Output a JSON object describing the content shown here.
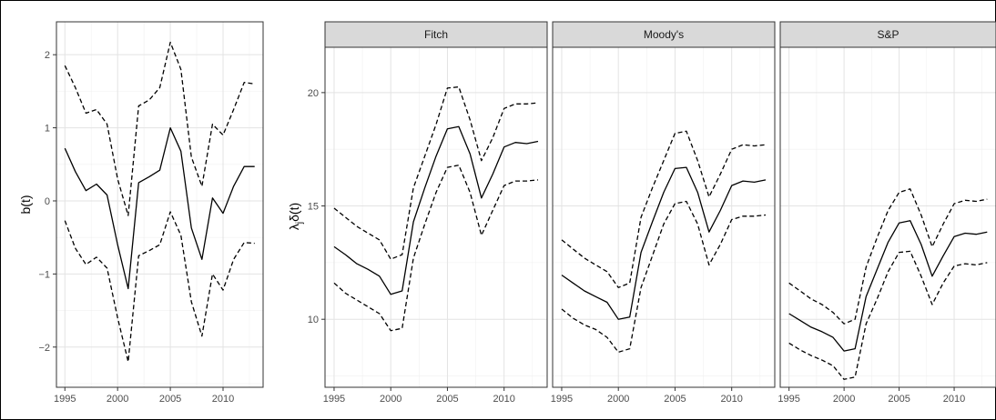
{
  "chart_data": [
    {
      "type": "line",
      "ylabel": "b(t)",
      "xlabel": "",
      "x": [
        1995,
        1996,
        1997,
        1998,
        1999,
        2000,
        2001,
        2002,
        2003,
        2004,
        2005,
        2006,
        2007,
        2008,
        2009,
        2010,
        2011,
        2012,
        2013
      ],
      "xticks": [
        1995,
        2000,
        2005,
        2010
      ],
      "xlim": [
        1994.2,
        2013.8
      ],
      "ylim": [
        -2.55,
        2.45
      ],
      "yticks": [
        -2,
        -1,
        0,
        1,
        2
      ],
      "ytick_labels": [
        "−2",
        "−1",
        "0",
        "1",
        "2"
      ],
      "grid": true,
      "series": [
        {
          "style": "dashed",
          "values": [
            1.85,
            1.55,
            1.2,
            1.25,
            1.05,
            0.3,
            -0.2,
            1.3,
            1.38,
            1.55,
            2.17,
            1.8,
            0.6,
            0.2,
            1.05,
            0.9,
            1.25,
            1.62,
            1.6
          ]
        },
        {
          "style": "solid",
          "values": [
            0.72,
            0.4,
            0.14,
            0.23,
            0.08,
            -0.6,
            -1.2,
            0.25,
            0.33,
            0.42,
            1.0,
            0.68,
            -0.37,
            -0.8,
            0.04,
            -0.17,
            0.2,
            0.47,
            0.47
          ]
        },
        {
          "style": "dashed",
          "values": [
            -0.27,
            -0.65,
            -0.87,
            -0.77,
            -0.92,
            -1.6,
            -2.2,
            -0.75,
            -0.68,
            -0.6,
            -0.15,
            -0.47,
            -1.38,
            -1.85,
            -1.0,
            -1.22,
            -0.8,
            -0.57,
            -0.58
          ]
        }
      ]
    },
    {
      "type": "line",
      "ylabel": "λjδ(t)",
      "ylabel_main": "λ",
      "ylabel_sub": "j",
      "ylabel_rest": "δ(t)",
      "xlabel": "",
      "xlim": [
        1994.2,
        2013.8
      ],
      "ylim": [
        7.0,
        22.0
      ],
      "xticks": [
        1995,
        2000,
        2005,
        2010
      ],
      "yticks": [
        10,
        15,
        20
      ],
      "ytick_labels": [
        "10",
        "15",
        "20"
      ],
      "grid": true,
      "x": [
        1995,
        1996,
        1997,
        1998,
        1999,
        2000,
        2001,
        2002,
        2003,
        2004,
        2005,
        2006,
        2007,
        2008,
        2009,
        2010,
        2011,
        2012,
        2013
      ],
      "panels": [
        {
          "label": "Fitch",
          "series": [
            {
              "style": "dashed",
              "values": [
                14.9,
                14.5,
                14.1,
                13.8,
                13.5,
                12.65,
                12.85,
                15.8,
                17.2,
                18.6,
                20.2,
                20.25,
                18.8,
                17.0,
                18.0,
                19.3,
                19.5,
                19.5,
                19.55
              ]
            },
            {
              "style": "solid",
              "values": [
                13.2,
                12.85,
                12.45,
                12.2,
                11.9,
                11.1,
                11.25,
                14.3,
                15.8,
                17.2,
                18.4,
                18.5,
                17.3,
                15.35,
                16.4,
                17.6,
                17.8,
                17.75,
                17.85
              ]
            },
            {
              "style": "dashed",
              "values": [
                11.6,
                11.15,
                10.85,
                10.55,
                10.25,
                9.5,
                9.6,
                12.7,
                14.2,
                15.6,
                16.7,
                16.8,
                15.6,
                13.7,
                14.8,
                15.9,
                16.1,
                16.1,
                16.15
              ]
            }
          ]
        },
        {
          "label": "Moody's",
          "series": [
            {
              "style": "dashed",
              "values": [
                13.5,
                13.1,
                12.7,
                12.4,
                12.1,
                11.4,
                11.6,
                14.5,
                15.8,
                17.0,
                18.2,
                18.3,
                17.0,
                15.4,
                16.4,
                17.5,
                17.7,
                17.65,
                17.7
              ]
            },
            {
              "style": "solid",
              "values": [
                11.95,
                11.6,
                11.25,
                11.0,
                10.75,
                10.0,
                10.1,
                12.95,
                14.3,
                15.6,
                16.65,
                16.7,
                15.6,
                13.85,
                14.8,
                15.9,
                16.1,
                16.05,
                16.15
              ]
            },
            {
              "style": "dashed",
              "values": [
                10.45,
                10.05,
                9.75,
                9.55,
                9.2,
                8.55,
                8.7,
                11.4,
                12.8,
                14.2,
                15.1,
                15.2,
                14.2,
                12.4,
                13.3,
                14.4,
                14.55,
                14.55,
                14.6
              ]
            }
          ]
        },
        {
          "label": "S&P",
          "series": [
            {
              "style": "dashed",
              "values": [
                11.6,
                11.25,
                10.9,
                10.65,
                10.3,
                9.8,
                10.0,
                12.3,
                13.6,
                14.8,
                15.6,
                15.75,
                14.6,
                13.2,
                14.2,
                15.1,
                15.25,
                15.2,
                15.3
              ]
            },
            {
              "style": "solid",
              "values": [
                10.25,
                9.95,
                9.65,
                9.45,
                9.2,
                8.6,
                8.7,
                11.0,
                12.2,
                13.4,
                14.25,
                14.35,
                13.3,
                11.9,
                12.8,
                13.65,
                13.8,
                13.75,
                13.85
              ]
            },
            {
              "style": "dashed",
              "values": [
                8.95,
                8.65,
                8.4,
                8.2,
                7.95,
                7.35,
                7.45,
                9.8,
                10.9,
                12.1,
                12.95,
                13.0,
                11.9,
                10.65,
                11.6,
                12.35,
                12.45,
                12.4,
                12.5
              ]
            }
          ]
        }
      ]
    }
  ]
}
